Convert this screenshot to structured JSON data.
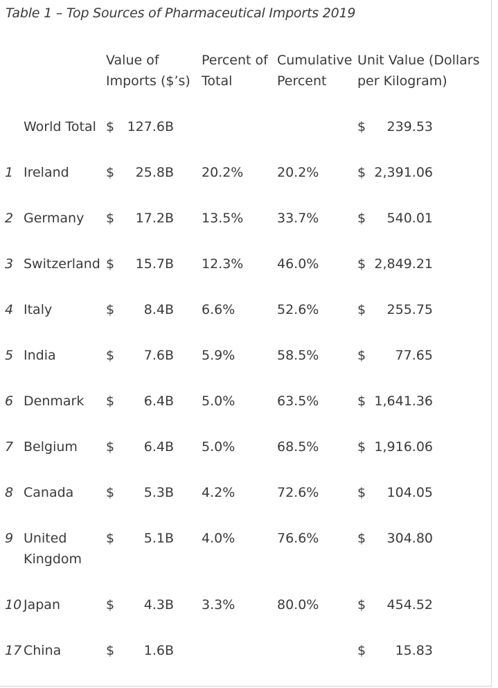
{
  "caption": "Table 1 – Top Sources of Pharmaceutical Imports 2019",
  "headers": {
    "value_line1": "Value of",
    "value_line2": "Imports ($’s)",
    "percent_line1": "Percent of",
    "percent_line2": "Total",
    "cumulative_line1": "Cumulative",
    "cumulative_line2": "Percent",
    "unit_line1": "Unit Value (Dollars",
    "unit_line2": "per Kilogram)"
  },
  "rows": [
    {
      "rank": "",
      "country": "World Total",
      "country2": "",
      "currency": "$",
      "value": "127.6B",
      "percent": "",
      "cumulative": "",
      "unit_currency": "$",
      "unit_value": "239.53"
    },
    {
      "rank": "1",
      "country": "Ireland",
      "country2": "",
      "currency": "$",
      "value": "25.8B",
      "percent": "20.2%",
      "cumulative": "20.2%",
      "unit_currency": "$",
      "unit_value": "2,391.06"
    },
    {
      "rank": "2",
      "country": "Germany",
      "country2": "",
      "currency": "$",
      "value": "17.2B",
      "percent": "13.5%",
      "cumulative": "33.7%",
      "unit_currency": "$",
      "unit_value": "540.01"
    },
    {
      "rank": "3",
      "country": "Switzerland",
      "country2": "",
      "currency": "$",
      "value": "15.7B",
      "percent": "12.3%",
      "cumulative": "46.0%",
      "unit_currency": "$",
      "unit_value": "2,849.21"
    },
    {
      "rank": "4",
      "country": "Italy",
      "country2": "",
      "currency": "$",
      "value": "8.4B",
      "percent": "6.6%",
      "cumulative": "52.6%",
      "unit_currency": "$",
      "unit_value": "255.75"
    },
    {
      "rank": "5",
      "country": "India",
      "country2": "",
      "currency": "$",
      "value": "7.6B",
      "percent": "5.9%",
      "cumulative": "58.5%",
      "unit_currency": "$",
      "unit_value": "77.65"
    },
    {
      "rank": "6",
      "country": "Denmark",
      "country2": "",
      "currency": "$",
      "value": "6.4B",
      "percent": "5.0%",
      "cumulative": "63.5%",
      "unit_currency": "$",
      "unit_value": "1,641.36"
    },
    {
      "rank": "7",
      "country": "Belgium",
      "country2": "",
      "currency": "$",
      "value": "6.4B",
      "percent": "5.0%",
      "cumulative": "68.5%",
      "unit_currency": "$",
      "unit_value": "1,916.06"
    },
    {
      "rank": "8",
      "country": "Canada",
      "country2": "",
      "currency": "$",
      "value": "5.3B",
      "percent": "4.2%",
      "cumulative": "72.6%",
      "unit_currency": "$",
      "unit_value": "104.05"
    },
    {
      "rank": "9",
      "country": "United",
      "country2": "Kingdom",
      "currency": "$",
      "value": "5.1B",
      "percent": "4.0%",
      "cumulative": "76.6%",
      "unit_currency": "$",
      "unit_value": "304.80"
    },
    {
      "rank": "10",
      "country": "Japan",
      "country2": "",
      "currency": "$",
      "value": "4.3B",
      "percent": "3.3%",
      "cumulative": "80.0%",
      "unit_currency": "$",
      "unit_value": "454.52"
    },
    {
      "rank": "17",
      "country": "China",
      "country2": "",
      "currency": "$",
      "value": "1.6B",
      "percent": "",
      "cumulative": "",
      "unit_currency": "$",
      "unit_value": "15.83"
    }
  ]
}
